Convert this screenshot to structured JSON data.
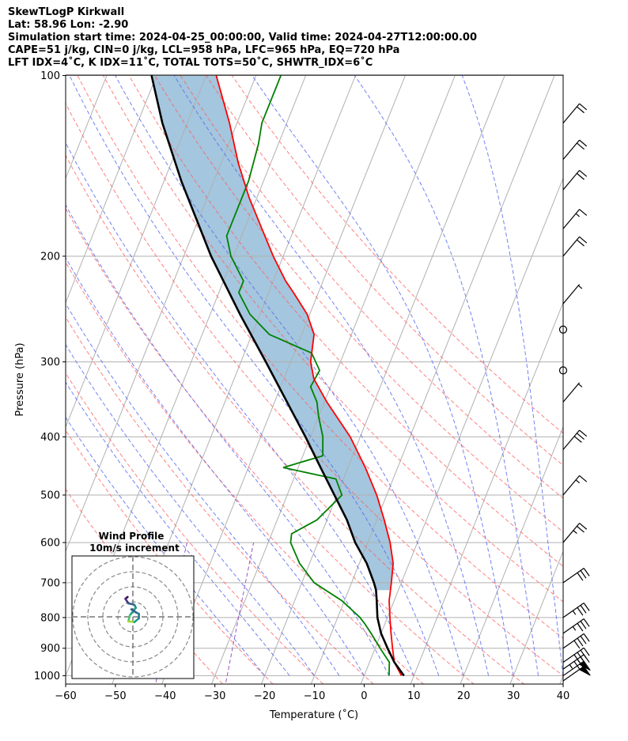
{
  "header": {
    "line1": "SkewTLogP Kirkwall",
    "line2": "Lat: 58.96   Lon: -2.90",
    "line3": "Simulation start time: 2024-04-25_00:00:00, Valid time: 2024-04-27T12:00:00.00",
    "line4": "CAPE=51 j/kg, CIN=0 j/kg, LCL=958 hPa, LFC=965 hPa, EQ=720 hPa",
    "line5": "LFT IDX=4˚C, K IDX=11˚C, TOTAL TOTS=50˚C, SHWTR_IDX=6˚C"
  },
  "chart_data": {
    "type": "line",
    "xlabel": "Temperature (˚C)",
    "ylabel": "Pressure (hPa)",
    "xlim": [
      -60,
      40
    ],
    "ylim": [
      1050,
      100
    ],
    "y_scale": "log",
    "skew": "skew-T",
    "grid": true,
    "xticks": [
      "−60",
      "−50",
      "−40",
      "−30",
      "−20",
      "−10",
      "0",
      "10",
      "20",
      "30",
      "40"
    ],
    "yticks": [
      "100",
      "200",
      "300",
      "400",
      "500",
      "600",
      "700",
      "800",
      "900",
      "1000"
    ],
    "colors": {
      "temperature": "#ff0000",
      "dewpoint": "#008000",
      "parcel": "#000000",
      "cape_fill": "#a4c6de",
      "dry_adiabats": "#ff6060",
      "moist_adiabats": "#5a6cf0",
      "mixing_ratio": "#9a55c8",
      "isotherms": "#b0b0b0"
    },
    "series": [
      {
        "key": "temperature",
        "points": [
          [
            1000,
            7.5
          ],
          [
            950,
            5.0
          ],
          [
            900,
            3.5
          ],
          [
            850,
            2.0
          ],
          [
            800,
            0.5
          ],
          [
            750,
            -1.0
          ],
          [
            700,
            -2.0
          ],
          [
            650,
            -3.2
          ],
          [
            600,
            -5.5
          ],
          [
            550,
            -8.5
          ],
          [
            500,
            -12.0
          ],
          [
            450,
            -16.5
          ],
          [
            400,
            -22.0
          ],
          [
            350,
            -29.5
          ],
          [
            320,
            -34.0
          ],
          [
            300,
            -36.0
          ],
          [
            270,
            -37.5
          ],
          [
            250,
            -40.5
          ],
          [
            230,
            -45.0
          ],
          [
            220,
            -47.5
          ],
          [
            200,
            -52.0
          ],
          [
            180,
            -56.5
          ],
          [
            160,
            -61.5
          ],
          [
            140,
            -66.5
          ],
          [
            120,
            -71.5
          ],
          [
            100,
            -78.0
          ]
        ]
      },
      {
        "key": "dewpoint",
        "points": [
          [
            1000,
            5.0
          ],
          [
            950,
            4.0
          ],
          [
            900,
            1.0
          ],
          [
            850,
            -2.0
          ],
          [
            820,
            -4.0
          ],
          [
            800,
            -5.5
          ],
          [
            750,
            -10.5
          ],
          [
            700,
            -17.5
          ],
          [
            650,
            -22.0
          ],
          [
            600,
            -25.5
          ],
          [
            580,
            -26.0
          ],
          [
            550,
            -22.0
          ],
          [
            500,
            -19.0
          ],
          [
            470,
            -21.5
          ],
          [
            450,
            -33.0
          ],
          [
            430,
            -26.0
          ],
          [
            400,
            -27.5
          ],
          [
            370,
            -30.0
          ],
          [
            350,
            -31.5
          ],
          [
            330,
            -34.0
          ],
          [
            310,
            -33.5
          ],
          [
            290,
            -36.5
          ],
          [
            270,
            -46.5
          ],
          [
            250,
            -52.0
          ],
          [
            230,
            -56.0
          ],
          [
            220,
            -56.0
          ],
          [
            200,
            -60.5
          ],
          [
            185,
            -63.0
          ],
          [
            170,
            -63.0
          ],
          [
            150,
            -63.0
          ],
          [
            130,
            -64.0
          ],
          [
            120,
            -65.0
          ],
          [
            100,
            -65.0
          ]
        ]
      },
      {
        "key": "parcel",
        "points": [
          [
            1000,
            8.0
          ],
          [
            950,
            5.0
          ],
          [
            900,
            2.5
          ],
          [
            850,
            0.0
          ],
          [
            800,
            -2.0
          ],
          [
            750,
            -3.5
          ],
          [
            720,
            -4.5
          ],
          [
            700,
            -5.5
          ],
          [
            650,
            -8.5
          ],
          [
            600,
            -12.5
          ],
          [
            550,
            -16.0
          ],
          [
            500,
            -20.5
          ],
          [
            450,
            -25.5
          ],
          [
            400,
            -31.0
          ],
          [
            350,
            -37.5
          ],
          [
            300,
            -45.0
          ],
          [
            250,
            -54.0
          ],
          [
            200,
            -64.5
          ],
          [
            150,
            -76.5
          ],
          [
            120,
            -85.0
          ],
          [
            100,
            -91.0
          ]
        ]
      }
    ],
    "wind_barbs": [
      {
        "p": 1020,
        "speed": 50
      },
      {
        "p": 1000,
        "speed": 50
      },
      {
        "p": 975,
        "speed": 45
      },
      {
        "p": 950,
        "speed": 40
      },
      {
        "p": 900,
        "speed": 40
      },
      {
        "p": 850,
        "speed": 35
      },
      {
        "p": 800,
        "speed": 35
      },
      {
        "p": 700,
        "speed": 30
      },
      {
        "p": 600,
        "speed": 25
      },
      {
        "p": 500,
        "speed": 15
      },
      {
        "p": 420,
        "speed": 30
      },
      {
        "p": 350,
        "speed": 5
      },
      {
        "p": 310,
        "speed": 0
      },
      {
        "p": 265,
        "speed": 0
      },
      {
        "p": 240,
        "speed": 5
      },
      {
        "p": 200,
        "speed": 20
      },
      {
        "p": 180,
        "speed": 15
      },
      {
        "p": 155,
        "speed": 20
      },
      {
        "p": 138,
        "speed": 20
      },
      {
        "p": 120,
        "speed": 20
      }
    ],
    "hodograph": {
      "title": "Wind Profile",
      "subtitle": "10m/s increment",
      "points": [
        [
          -0.35,
          1.32
        ],
        [
          -0.5,
          1.2
        ],
        [
          -0.3,
          0.9
        ],
        [
          0.1,
          0.8
        ],
        [
          0.2,
          0.6
        ],
        [
          -0.2,
          0.1
        ],
        [
          -0.3,
          -0.3
        ],
        [
          0.1,
          -0.35
        ],
        [
          0.4,
          -0.1
        ],
        [
          0.4,
          0.2
        ],
        [
          0.2,
          0.3
        ],
        [
          -0.1,
          0.5
        ]
      ]
    }
  }
}
